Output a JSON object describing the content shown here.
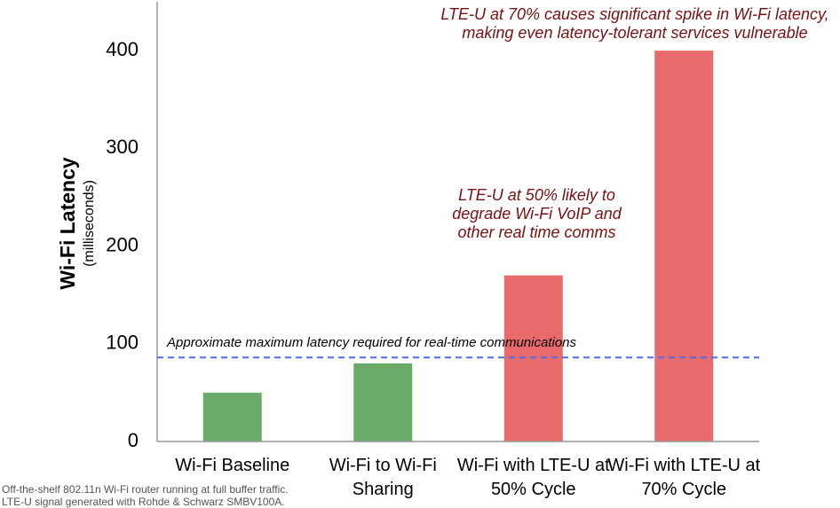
{
  "chart_data": {
    "type": "bar",
    "y_axis_title": "Wi-Fi Latency",
    "y_axis_subtitle": "(milliseconds)",
    "categories": [
      "Wi-Fi Baseline",
      "Wi-Fi to Wi-Fi Sharing",
      "Wi-Fi with LTE-U at 50% Cycle",
      "Wi-Fi with LTE-U at 70% Cycle"
    ],
    "values": [
      50,
      80,
      170,
      400
    ],
    "colors": [
      "#6aab6a",
      "#6aab6a",
      "#e96a6a",
      "#e96a6a"
    ],
    "ylim": [
      0,
      450
    ],
    "yticks": [
      0,
      100,
      200,
      300,
      400
    ],
    "grid": false,
    "reference_line": {
      "value": 86,
      "label": "Approximate maximum latency required for real-time communications",
      "color": "#4a6cf0"
    },
    "annotations": [
      "LTE-U at 70% causes significant spike in Wi-Fi latency, making even latency-tolerant services vulnerable",
      "LTE-U at 50% likely to degrade Wi-Fi VoIP and other real time comms"
    ],
    "footnote": [
      "Off-the-shelf 802.11n Wi-Fi router running at full buffer traffic.",
      "LTE-U signal generated with Rohde & Schwarz SMBV100A."
    ]
  }
}
